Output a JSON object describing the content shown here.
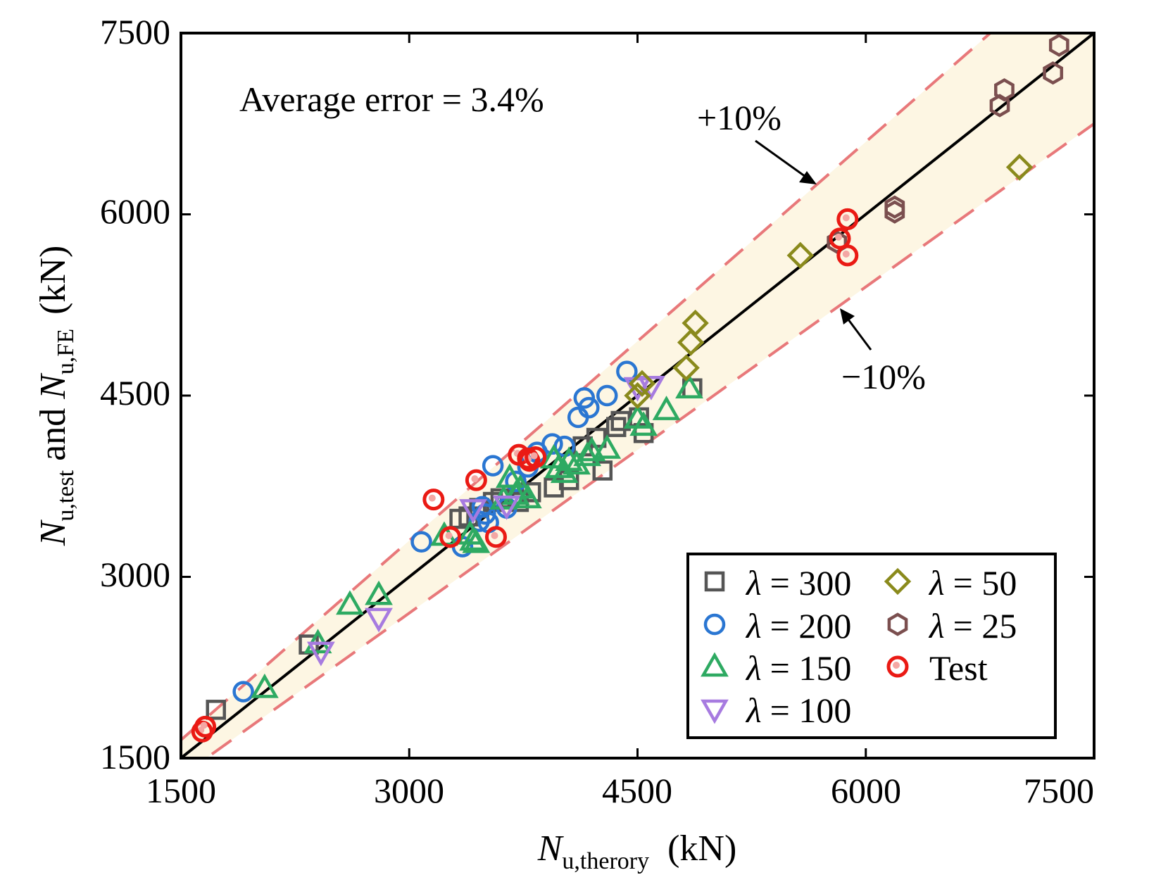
{
  "chart_data": {
    "type": "scatter",
    "title": "",
    "xlabel": {
      "main": "N",
      "sub": "u,therory",
      "unit": "(kN)"
    },
    "ylabel": {
      "part1": "N",
      "sub1": "u,test",
      "mid": " and ",
      "part2": "N",
      "sub2": "u,FE",
      "unit": "(kN)"
    },
    "xlim": [
      1500,
      7500
    ],
    "ylim": [
      1500,
      7500
    ],
    "xticks": [
      1500,
      3000,
      4500,
      6000,
      7500
    ],
    "yticks": [
      1500,
      3000,
      4500,
      6000,
      7500
    ],
    "tick_labels": [
      "1500",
      "3000",
      "4500",
      "6000",
      "7500"
    ],
    "reference_line": {
      "type": "y=x",
      "color": "#000000"
    },
    "error_bands": [
      {
        "label": "+10%",
        "factor": 1.1,
        "color": "#e8787a"
      },
      {
        "label": "−10%",
        "factor": 0.9,
        "color": "#e8787a"
      }
    ],
    "band_fill": "#fdf6e3",
    "annotations": {
      "average_error": "Average error = 3.4%",
      "plus10": "+10%",
      "minus10": "−10%"
    },
    "legend_position": "bottom-right",
    "legend_symbol": "λ",
    "series": [
      {
        "name": "λ = 300",
        "symbol": "λ",
        "value": "= 300",
        "marker": "square",
        "color": "#555555",
        "points": [
          [
            1730,
            1900
          ],
          [
            2340,
            2440
          ],
          [
            3330,
            3480
          ],
          [
            3390,
            3500
          ],
          [
            3460,
            3570
          ],
          [
            3550,
            3620
          ],
          [
            3600,
            3650
          ],
          [
            3720,
            3620
          ],
          [
            3800,
            3700
          ],
          [
            3950,
            3740
          ],
          [
            4050,
            3800
          ],
          [
            4140,
            4080
          ],
          [
            4230,
            4150
          ],
          [
            4270,
            3880
          ],
          [
            4360,
            4240
          ],
          [
            4390,
            4290
          ],
          [
            4510,
            4320
          ],
          [
            4540,
            4190
          ],
          [
            4860,
            4560
          ]
        ]
      },
      {
        "name": "λ = 200",
        "symbol": "λ",
        "value": "= 200",
        "marker": "circle",
        "color": "#2a76d2",
        "points": [
          [
            1910,
            2050
          ],
          [
            3080,
            3290
          ],
          [
            3350,
            3250
          ],
          [
            3460,
            3460
          ],
          [
            3480,
            3580
          ],
          [
            3500,
            3520
          ],
          [
            3520,
            3450
          ],
          [
            3550,
            3920
          ],
          [
            3640,
            3570
          ],
          [
            3700,
            3790
          ],
          [
            3780,
            3910
          ],
          [
            3840,
            4030
          ],
          [
            3940,
            4100
          ],
          [
            4020,
            4080
          ],
          [
            4110,
            4320
          ],
          [
            4150,
            4480
          ],
          [
            4180,
            4400
          ],
          [
            4300,
            4500
          ],
          [
            4430,
            4700
          ]
        ]
      },
      {
        "name": "λ = 150",
        "symbol": "λ",
        "value": "= 150",
        "marker": "triangle-up",
        "color": "#2eaa62",
        "points": [
          [
            2050,
            2080
          ],
          [
            2400,
            2450
          ],
          [
            2610,
            2770
          ],
          [
            2800,
            2850
          ],
          [
            3230,
            3340
          ],
          [
            3400,
            3350
          ],
          [
            3420,
            3300
          ],
          [
            3440,
            3280
          ],
          [
            3620,
            3640
          ],
          [
            3660,
            3820
          ],
          [
            3700,
            3680
          ],
          [
            3730,
            3730
          ],
          [
            3780,
            3650
          ],
          [
            3950,
            3980
          ],
          [
            3980,
            3900
          ],
          [
            4020,
            3860
          ],
          [
            4050,
            3960
          ],
          [
            4100,
            3930
          ],
          [
            4170,
            4000
          ],
          [
            4200,
            4040
          ],
          [
            4300,
            4060
          ],
          [
            4500,
            4310
          ],
          [
            4540,
            4250
          ],
          [
            4690,
            4380
          ],
          [
            4840,
            4560
          ]
        ]
      },
      {
        "name": "λ = 100",
        "symbol": "λ",
        "value": "= 100",
        "marker": "triangle-down",
        "color": "#a77be0",
        "points": [
          [
            2420,
            2380
          ],
          [
            2800,
            2660
          ],
          [
            3420,
            3560
          ],
          [
            3640,
            3590
          ],
          [
            4500,
            4570
          ],
          [
            4590,
            4580
          ]
        ]
      },
      {
        "name": "λ = 50",
        "symbol": "λ",
        "value": "= 50",
        "marker": "diamond",
        "color": "#8a8a1c",
        "points": [
          [
            4500,
            4500
          ],
          [
            4530,
            4600
          ],
          [
            4820,
            4730
          ],
          [
            4850,
            4940
          ],
          [
            4880,
            5100
          ],
          [
            5570,
            5660
          ],
          [
            7010,
            6390
          ]
        ]
      },
      {
        "name": "λ = 25",
        "symbol": "λ",
        "value": "= 25",
        "marker": "hexagon",
        "color": "#7b4f4f",
        "points": [
          [
            5810,
            5770
          ],
          [
            6190,
            6060
          ],
          [
            6190,
            6020
          ],
          [
            6880,
            6900
          ],
          [
            6910,
            7030
          ],
          [
            7230,
            7170
          ],
          [
            7270,
            7400
          ]
        ]
      },
      {
        "name": "Test",
        "symbol": "",
        "value": "Test",
        "marker": "circle-filled-dot",
        "color": "#ea1a14",
        "points": [
          [
            1640,
            1720
          ],
          [
            1660,
            1760
          ],
          [
            3160,
            3640
          ],
          [
            3270,
            3330
          ],
          [
            3440,
            3800
          ],
          [
            3570,
            3330
          ],
          [
            3720,
            4010
          ],
          [
            3780,
            3980
          ],
          [
            3790,
            3960
          ],
          [
            3830,
            3990
          ],
          [
            5830,
            5800
          ],
          [
            5880,
            5960
          ],
          [
            5880,
            5660
          ]
        ]
      }
    ]
  }
}
